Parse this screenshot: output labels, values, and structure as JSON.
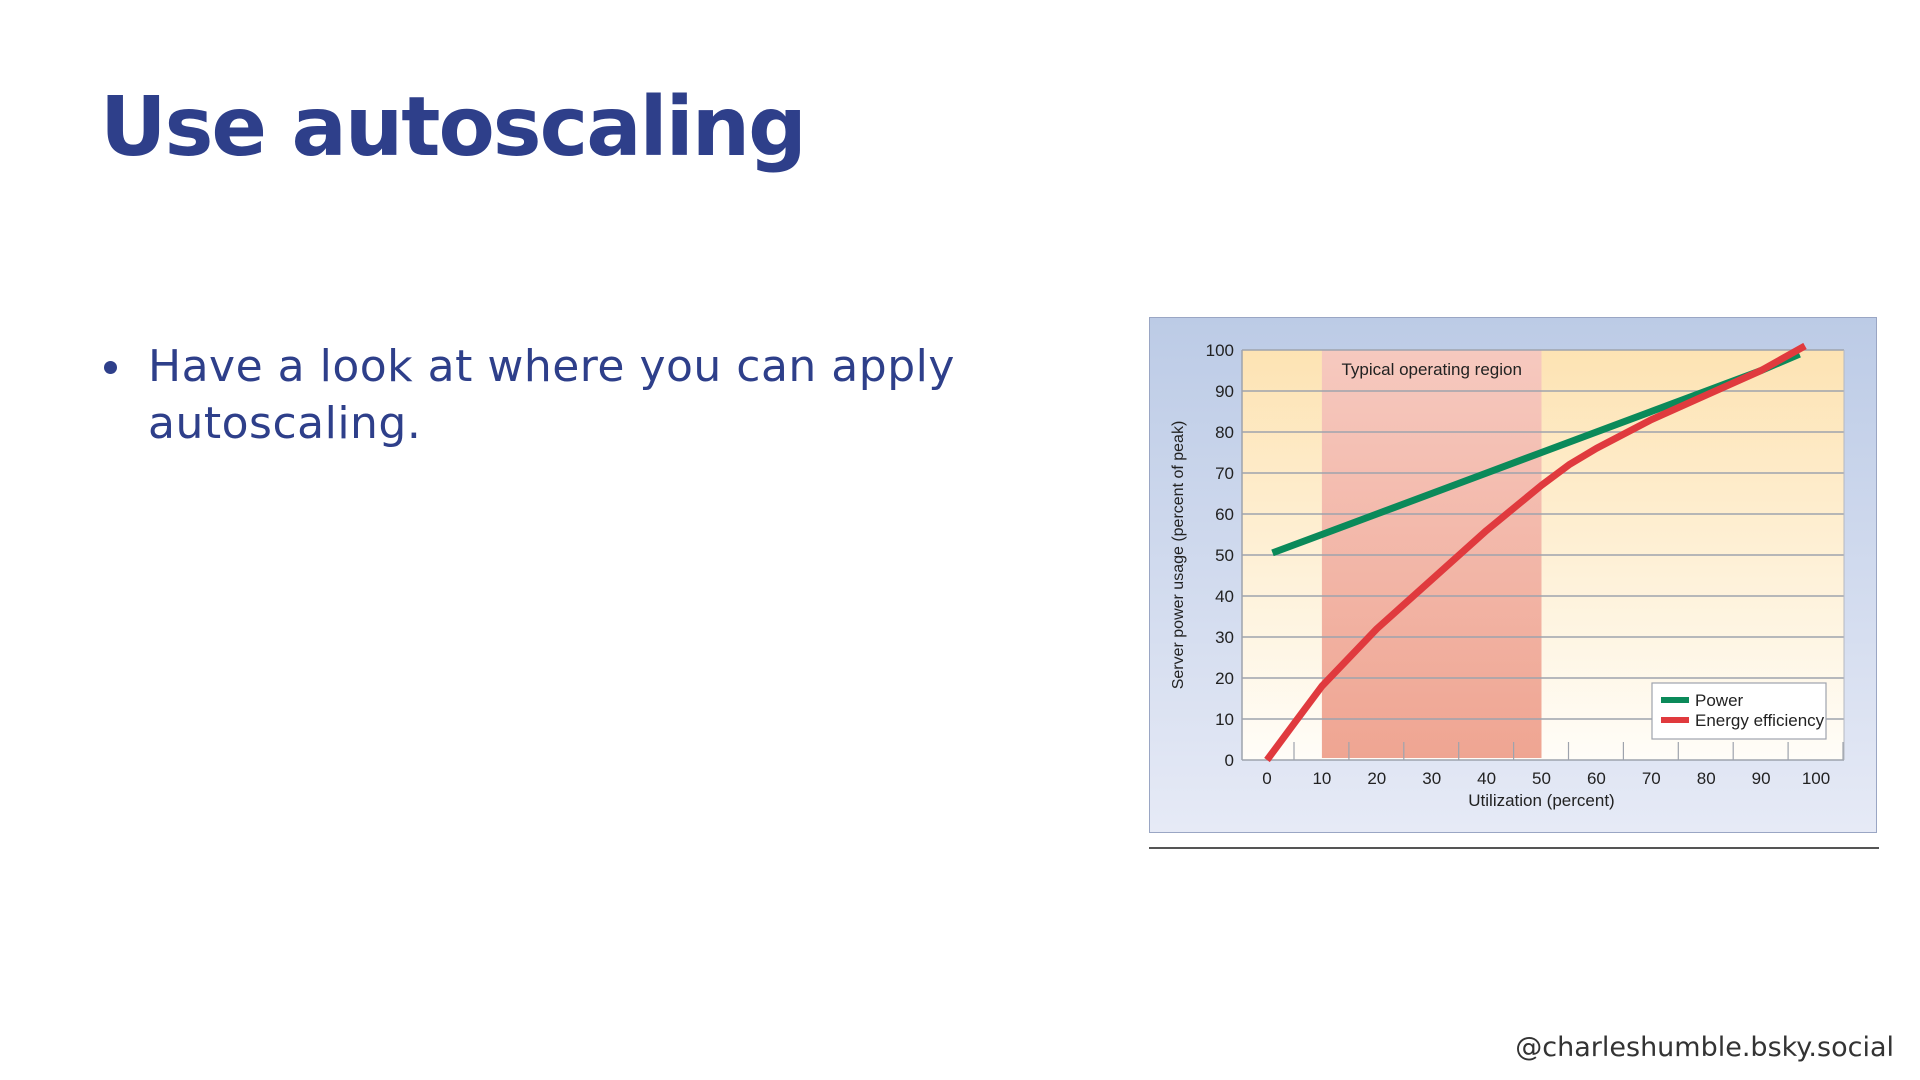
{
  "slide": {
    "title": "Use autoscaling",
    "bullets": [
      "Have a look at where you can apply autoscaling."
    ],
    "handle": "@charleshumble.bsky.social"
  },
  "chart_data": {
    "type": "line",
    "title": "",
    "xlabel": "Utilization (percent)",
    "ylabel": "Server power usage (percent of peak)",
    "xlim": [
      0,
      100
    ],
    "ylim": [
      0,
      100
    ],
    "xticks": [
      0,
      10,
      20,
      30,
      40,
      50,
      60,
      70,
      80,
      90,
      100
    ],
    "yticks": [
      0,
      10,
      20,
      30,
      40,
      50,
      60,
      70,
      80,
      90,
      100
    ],
    "grid": "horizontal",
    "legend": "bottom-right",
    "annotation": {
      "label": "Typical operating region",
      "x_range": [
        10,
        50
      ],
      "color": "#f2a594"
    },
    "series": [
      {
        "name": "Power",
        "color": "#0b8a5a",
        "x": [
          1,
          10,
          20,
          30,
          40,
          50,
          60,
          70,
          80,
          90,
          97
        ],
        "y": [
          50.5,
          55,
          60,
          65,
          70,
          75,
          80,
          85,
          90,
          95,
          99
        ]
      },
      {
        "name": "Energy efficiency",
        "color": "#e03a3e",
        "x": [
          0,
          5,
          10,
          20,
          30,
          40,
          50,
          55,
          60,
          70,
          80,
          90,
          98
        ],
        "y": [
          0,
          9,
          18,
          32,
          44,
          56,
          67,
          72,
          76,
          83,
          89,
          95,
          101
        ]
      }
    ]
  }
}
